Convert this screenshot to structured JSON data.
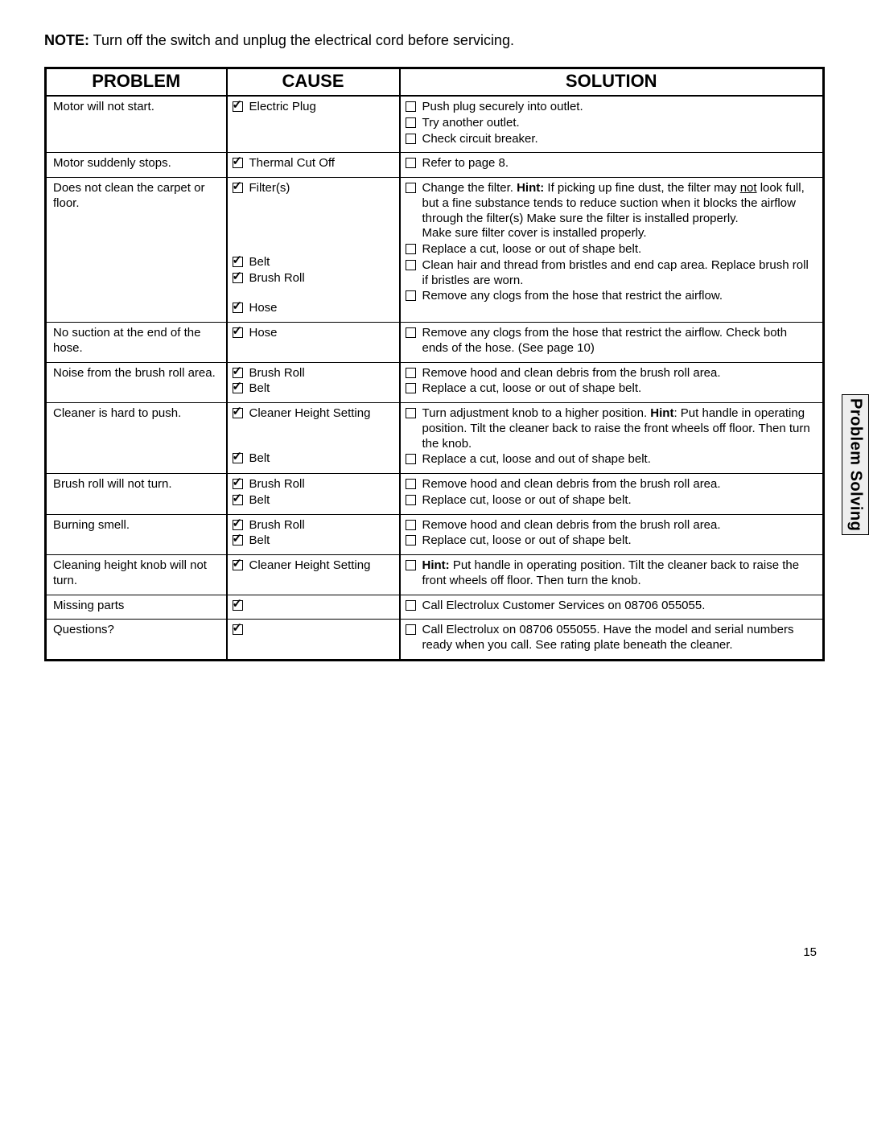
{
  "note_prefix": "NOTE:",
  "note_text": "  Turn off the switch and unplug the electrical cord before servicing.",
  "side_tab": "Problem Solving",
  "page_number": "15",
  "headers": {
    "problem": "PROBLEM",
    "cause": "CAUSE",
    "solution": "SOLUTION"
  },
  "rows": [
    {
      "problem": "Motor will not start.",
      "causes": [
        {
          "label": "Electric Plug",
          "checked": true
        }
      ],
      "solutions": [
        {
          "text": "Push plug securely into outlet."
        },
        {
          "text": "Try another outlet."
        },
        {
          "text": "Check circuit breaker."
        }
      ]
    },
    {
      "problem": "Motor suddenly stops.",
      "causes": [
        {
          "label": "Thermal Cut Off",
          "checked": true
        }
      ],
      "solutions": [
        {
          "text": "Refer to page 8."
        }
      ]
    },
    {
      "problem": "Does not clean the carpet or floor.",
      "causes": [
        {
          "label": "Filter(s)",
          "checked": true,
          "pad_after": 4
        },
        {
          "label": "Belt",
          "checked": true
        },
        {
          "label": "Brush Roll",
          "checked": true,
          "pad_after": 1
        },
        {
          "label": "Hose",
          "checked": true
        }
      ],
      "solutions": [
        {
          "html": "Change the filter. <span class=\"hint-bold\">Hint:</span> If picking up fine dust, the filter may <span class=\"underline\">not</span> look full, but a fine substance tends to reduce suction when it blocks the airflow through the filter(s) Make sure the filter is installed properly.<br>Make sure filter cover is installed properly."
        },
        {
          "text": "Replace a cut, loose or out of shape belt."
        },
        {
          "text": "Clean hair and thread from bristles and end cap area. Replace brush roll if bristles are worn."
        },
        {
          "text": "Remove any clogs from the hose that restrict the airflow."
        }
      ]
    },
    {
      "problem": "No suction at the end of the hose.",
      "causes": [
        {
          "label": "Hose",
          "checked": true
        }
      ],
      "solutions": [
        {
          "text": "Remove any clogs from the hose that restrict the airflow. Check both ends of the hose. (See page 10)"
        }
      ]
    },
    {
      "problem": "Noise from the brush roll area.",
      "causes": [
        {
          "label": "Brush Roll",
          "checked": true
        },
        {
          "label": "Belt",
          "checked": true
        }
      ],
      "solutions": [
        {
          "text": "Remove hood and clean debris from the brush roll area."
        },
        {
          "text": "Replace a cut, loose or out of shape belt."
        }
      ]
    },
    {
      "problem": "Cleaner is hard to push.",
      "causes": [
        {
          "label": "Cleaner Height Setting",
          "checked": true,
          "pad_after": 2
        },
        {
          "label": "Belt",
          "checked": true
        }
      ],
      "solutions": [
        {
          "html": "Turn adjustment knob to a higher position. <span class=\"hint-bold\">Hint</span>: Put handle in operating position.  Tilt the cleaner back to raise the front wheels off floor. Then turn the knob."
        },
        {
          "text": "Replace a cut, loose and out of shape belt."
        }
      ]
    },
    {
      "problem": "Brush roll will not turn.",
      "causes": [
        {
          "label": "Brush Roll",
          "checked": true
        },
        {
          "label": "Belt",
          "checked": true
        }
      ],
      "solutions": [
        {
          "text": "Remove hood and clean debris from the brush roll area."
        },
        {
          "text": "Replace cut, loose or out of shape belt."
        }
      ]
    },
    {
      "problem": "Burning smell.",
      "causes": [
        {
          "label": "Brush Roll",
          "checked": true
        },
        {
          "label": "Belt",
          "checked": true
        }
      ],
      "solutions": [
        {
          "text": "Remove hood and clean debris from the brush roll area."
        },
        {
          "text": "Replace cut, loose or out of shape belt."
        }
      ]
    },
    {
      "problem": "Cleaning height knob will not turn.",
      "causes": [
        {
          "label": "Cleaner Height Setting",
          "checked": true
        }
      ],
      "solutions": [
        {
          "html": "<span class=\"hint-bold\">Hint:</span>  Put handle in operating position.  Tilt the cleaner back to raise the front wheels off floor. Then turn the knob."
        }
      ]
    },
    {
      "problem": "Missing parts",
      "causes": [
        {
          "label": "",
          "checked": true
        }
      ],
      "solutions": [
        {
          "text": "Call Electrolux  Customer Services on 08706 055055."
        }
      ]
    },
    {
      "problem": "Questions?",
      "causes": [
        {
          "label": "",
          "checked": true
        }
      ],
      "solutions": [
        {
          "text": "Call Electrolux on 08706 055055. Have the model and serial numbers ready when you call. See rating plate beneath the cleaner."
        }
      ]
    }
  ]
}
